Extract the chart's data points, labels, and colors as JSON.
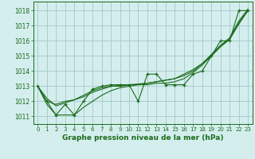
{
  "title": "Graphe pression niveau de la mer (hPa)",
  "xlim": [
    -0.5,
    23.5
  ],
  "ylim": [
    1010.5,
    1018.6
  ],
  "yticks": [
    1011,
    1012,
    1013,
    1014,
    1015,
    1016,
    1017,
    1018
  ],
  "xticks": [
    0,
    1,
    2,
    3,
    4,
    5,
    6,
    7,
    8,
    9,
    10,
    11,
    12,
    13,
    14,
    15,
    16,
    17,
    18,
    19,
    20,
    21,
    22,
    23
  ],
  "bg_color": "#d4eeee",
  "grid_color": "#aacccc",
  "line_color": "#1a6b1a",
  "main_data": [
    1013.0,
    1012.0,
    1011.1,
    1011.8,
    1011.1,
    1012.0,
    1012.8,
    1013.0,
    1013.1,
    1013.1,
    1013.1,
    1012.0,
    1013.8,
    1013.8,
    1013.1,
    1013.1,
    1013.1,
    1013.8,
    1014.0,
    1015.0,
    1016.0,
    1016.0,
    1018.0,
    1018.0
  ],
  "line2": [
    1013.0,
    1012.0,
    1011.8,
    1012.0,
    1012.1,
    1012.3,
    1012.6,
    1012.8,
    1013.0,
    1013.0,
    1013.1,
    1013.1,
    1013.2,
    1013.3,
    1013.4,
    1013.5,
    1013.8,
    1014.1,
    1014.5,
    1015.0,
    1015.7,
    1016.2,
    1017.3,
    1018.1
  ],
  "line3": [
    1013.0,
    1011.8,
    1011.1,
    1011.1,
    1011.1,
    1011.6,
    1012.0,
    1012.4,
    1012.7,
    1012.9,
    1013.0,
    1013.1,
    1013.1,
    1013.2,
    1013.2,
    1013.3,
    1013.5,
    1013.9,
    1014.4,
    1015.0,
    1015.6,
    1016.1,
    1017.2,
    1018.0
  ],
  "line4": [
    1013.0,
    1012.2,
    1011.7,
    1011.9,
    1012.1,
    1012.4,
    1012.7,
    1012.9,
    1013.0,
    1013.05,
    1013.1,
    1013.15,
    1013.2,
    1013.3,
    1013.4,
    1013.5,
    1013.7,
    1014.0,
    1014.5,
    1015.1,
    1015.7,
    1016.1,
    1017.1,
    1018.0
  ]
}
